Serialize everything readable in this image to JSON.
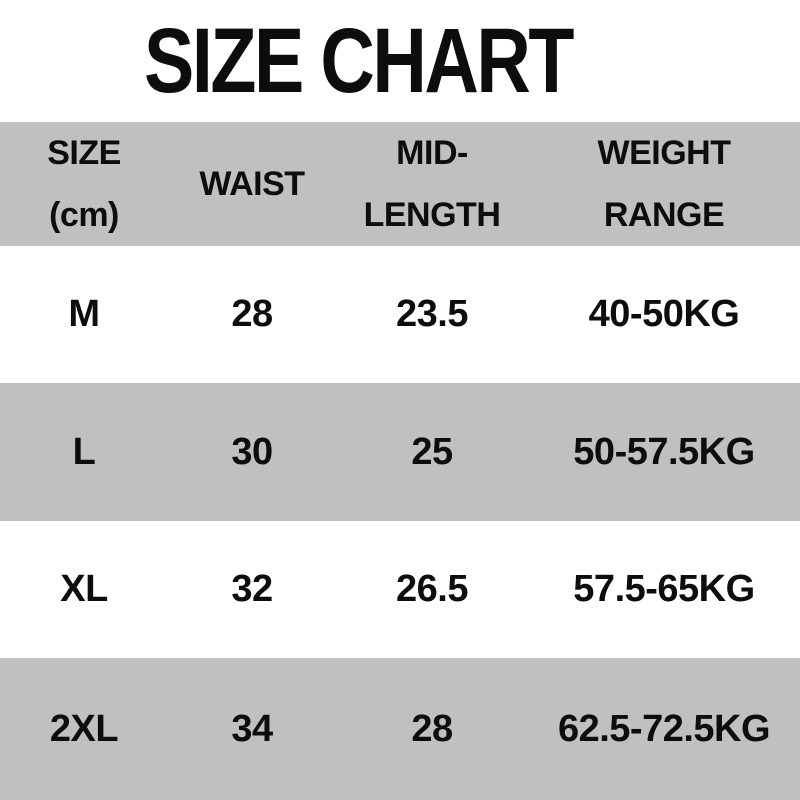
{
  "title": "SIZE CHART",
  "colors": {
    "stripe_gray": "#c0c0c0",
    "row_white": "#ffffff",
    "text_black": "#0d0d0d"
  },
  "header_display": [
    "SIZE\n(cm)",
    "WAIST",
    "MID-\nLENGTH",
    "WEIGHT\nRANGE"
  ],
  "chart_data": {
    "type": "table",
    "title": "SIZE CHART",
    "columns": [
      "SIZE (cm)",
      "WAIST",
      "MID-LENGTH",
      "WEIGHT RANGE"
    ],
    "rows": [
      [
        "M",
        "28",
        "23.5",
        "40-50KG"
      ],
      [
        "L",
        "30",
        "25",
        "50-57.5KG"
      ],
      [
        "XL",
        "32",
        "26.5",
        "57.5-65KG"
      ],
      [
        "2XL",
        "34",
        "28",
        "62.5-72.5KG"
      ]
    ]
  }
}
